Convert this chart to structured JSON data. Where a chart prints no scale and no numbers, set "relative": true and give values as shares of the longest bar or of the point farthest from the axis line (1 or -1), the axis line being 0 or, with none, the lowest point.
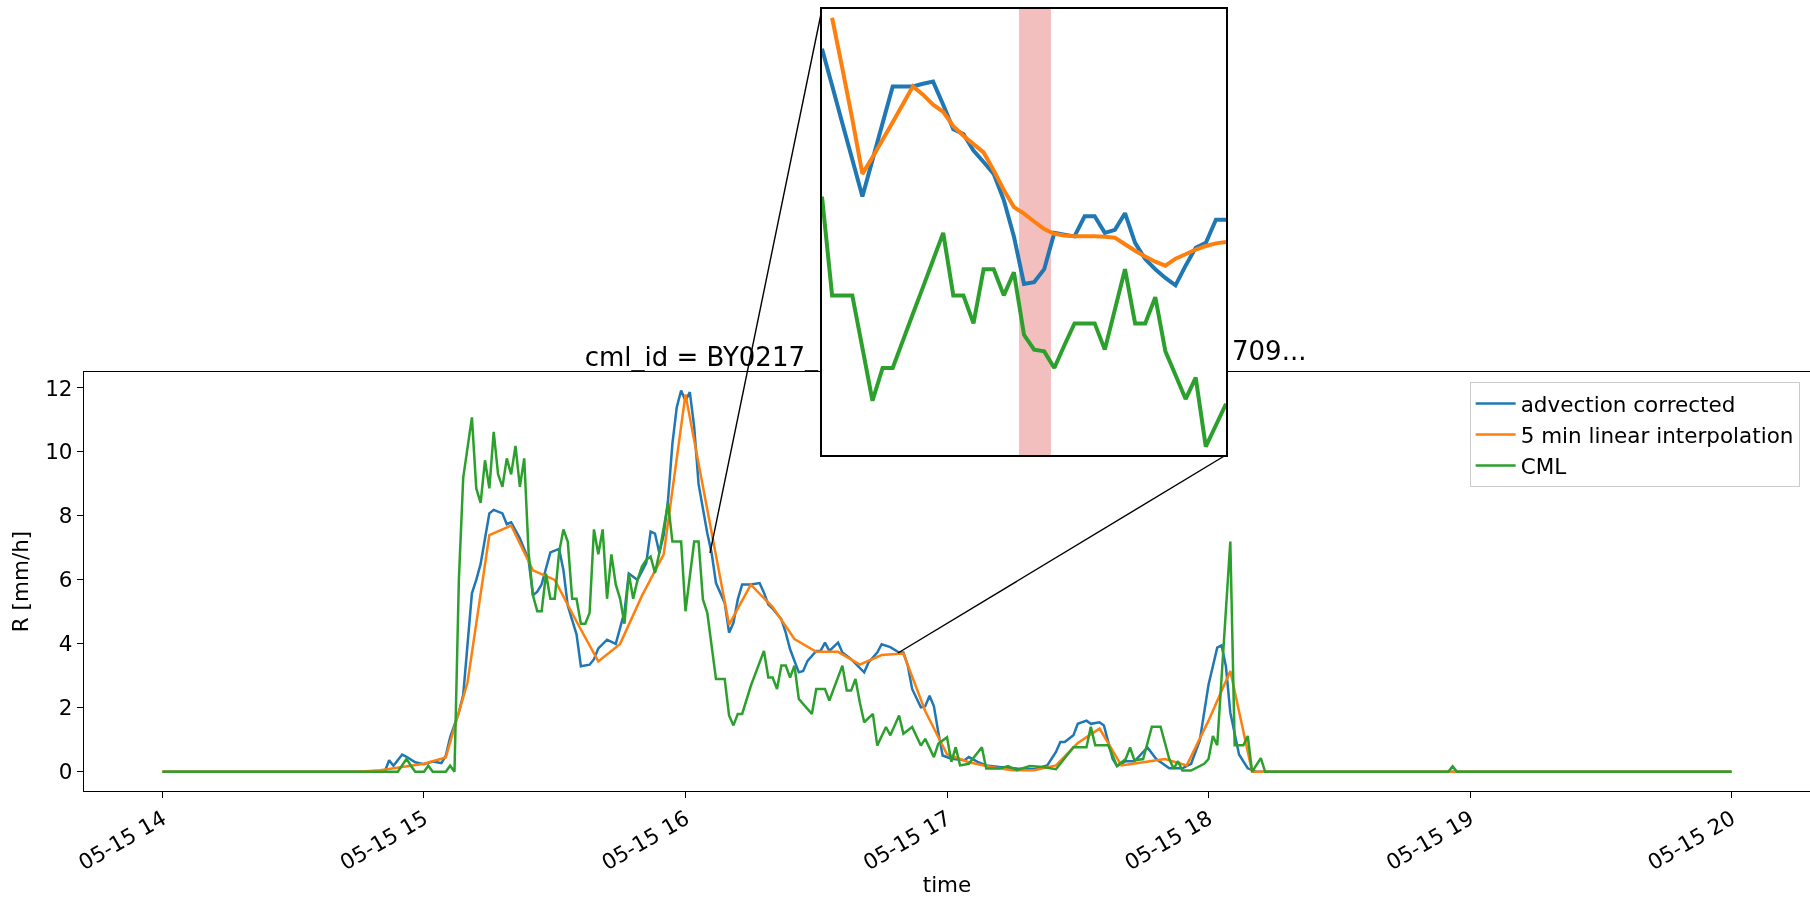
{
  "chart_data": [
    {
      "type": "line",
      "title": "cml_id = BY0217_",
      "annotations": [
        "709..."
      ],
      "xlabel": "time",
      "ylabel": "R [mm/h]",
      "xlim": [
        "--05-15T13:42",
        "--05-15T20:18"
      ],
      "xticks": [
        {
          "value": "--05-15T14:00",
          "label": "05-15 14"
        },
        {
          "value": "--05-15T15:00",
          "label": "05-15 15"
        },
        {
          "value": "--05-15T16:00",
          "label": "05-15 16"
        },
        {
          "value": "--05-15T17:00",
          "label": "05-15 17"
        },
        {
          "value": "--05-15T18:00",
          "label": "05-15 18"
        },
        {
          "value": "--05-15T19:00",
          "label": "05-15 19"
        },
        {
          "value": "--05-15T20:00",
          "label": "05-15 20"
        }
      ],
      "ylim": [
        -0.6,
        12.5
      ],
      "yticks": [
        0,
        2,
        4,
        6,
        8,
        10,
        12
      ],
      "legend": "top right",
      "series": [
        {
          "name": "advection corrected",
          "color": "#1f77b4",
          "x": [
            "--05-15T14:00",
            "--05-15T14:51",
            "--05-15T14:52",
            "--05-15T14:53",
            "--05-15T14:55",
            "--05-15T14:56",
            "--05-15T14:58",
            "--05-15T15:00",
            "--05-15T15:02",
            "--05-15T15:03",
            "--05-15T15:04",
            "--05-15T15:05",
            "--05-15T15:06",
            "--05-15T15:08",
            "--05-15T15:09",
            "--05-15T15:11",
            "--05-15T15:12",
            "--05-15T15:13",
            "--05-15T15:15",
            "--05-15T15:16",
            "--05-15T15:18",
            "--05-15T15:19",
            "--05-15T15:20",
            "--05-15T15:22",
            "--05-15T15:24",
            "--05-15T15:25",
            "--05-15T15:26",
            "--05-15T15:27",
            "--05-15T15:29",
            "--05-15T15:31",
            "--05-15T15:32",
            "--05-15T15:33",
            "--05-15T15:35",
            "--05-15T15:36",
            "--05-15T15:38",
            "--05-15T15:39",
            "--05-15T15:40",
            "--05-15T15:42",
            "--05-15T15:44",
            "--05-15T15:45",
            "--05-15T15:46",
            "--05-15T15:47",
            "--05-15T15:48",
            "--05-15T15:49",
            "--05-15T15:51",
            "--05-15T15:52",
            "--05-15T15:53",
            "--05-15T15:54",
            "--05-15T15:55",
            "--05-15T15:56",
            "--05-15T15:57",
            "--05-15T15:58",
            "--05-15T15:59",
            "--05-15T16:00",
            "--05-15T16:01",
            "--05-15T16:02",
            "--05-15T16:03",
            "--05-15T16:05",
            "--05-15T16:06",
            "--05-15T16:07",
            "--05-15T16:09",
            "--05-15T16:10",
            "--05-15T16:11",
            "--05-15T16:12",
            "--05-15T16:13",
            "--05-15T16:15",
            "--05-15T16:17",
            "--05-15T16:18",
            "--05-15T16:19",
            "--05-15T16:20",
            "--05-15T16:22",
            "--05-15T16:23",
            "--05-15T16:24",
            "--05-15T16:26",
            "--05-15T16:27",
            "--05-15T16:28",
            "--05-15T16:30",
            "--05-15T16:31",
            "--05-15T16:32",
            "--05-15T16:33",
            "--05-15T16:35",
            "--05-15T16:36",
            "--05-15T16:38",
            "--05-15T16:41",
            "--05-15T16:42",
            "--05-15T16:44",
            "--05-15T16:45",
            "--05-15T16:47",
            "--05-15T16:49",
            "--05-15T16:50",
            "--05-15T16:51",
            "--05-15T16:52",
            "--05-15T16:54",
            "--05-15T16:55",
            "--05-15T16:56",
            "--05-15T16:57",
            "--05-15T16:58",
            "--05-15T16:59",
            "--05-15T17:01",
            "--05-15T17:04",
            "--05-15T17:05",
            "--05-15T17:07",
            "--05-15T17:09",
            "--05-15T17:12",
            "--05-15T17:16",
            "--05-15T17:20",
            "--05-15T17:23",
            "--05-15T17:25",
            "--05-15T17:26",
            "--05-15T17:27",
            "--05-15T17:29",
            "--05-15T17:30",
            "--05-15T17:32",
            "--05-15T17:33",
            "--05-15T17:35",
            "--05-15T17:36",
            "--05-15T17:37",
            "--05-15T17:38",
            "--05-15T17:39",
            "--05-15T17:41",
            "--05-15T17:43",
            "--05-15T17:46",
            "--05-15T17:48",
            "--05-15T17:51",
            "--05-15T17:54",
            "--05-15T17:56",
            "--05-15T17:58",
            "--05-15T18:00",
            "--05-15T18:02",
            "--05-15T18:03",
            "--05-15T18:04",
            "--05-15T18:05",
            "--05-15T18:07",
            "--05-15T18:09",
            "--05-15T18:11",
            "--05-15T20:00"
          ],
          "values": [
            0,
            0,
            0.36,
            0.19,
            0.54,
            0.47,
            0.3,
            0.24,
            0.32,
            0.3,
            0.27,
            0.5,
            1.08,
            1.86,
            2.4,
            5.58,
            6.0,
            6.5,
            8.08,
            8.19,
            8.08,
            7.74,
            7.8,
            7.3,
            6.63,
            5.52,
            5.63,
            5.86,
            6.86,
            6.97,
            6.3,
            5.19,
            4.3,
            3.3,
            3.35,
            3.52,
            3.86,
            4.13,
            4.0,
            4.5,
            5.0,
            6.2,
            6.1,
            6.0,
            6.53,
            7.51,
            7.45,
            6.84,
            7.4,
            8.5,
            10.26,
            11.4,
            11.92,
            11.6,
            11.87,
            10.78,
            9.0,
            7.46,
            6.84,
            5.9,
            5.28,
            4.35,
            4.66,
            5.39,
            5.86,
            5.86,
            5.9,
            5.6,
            5.23,
            5.1,
            4.77,
            4.35,
            3.83,
            3.11,
            3.15,
            3.47,
            3.78,
            3.78,
            4.04,
            3.78,
            4.04,
            3.73,
            3.52,
            3.11,
            3.42,
            3.73,
            3.99,
            3.9,
            3.73,
            3.73,
            3.32,
            2.59,
            2.02,
            2.05,
            2.38,
            2.05,
            1.24,
            0.51,
            0.41,
            0.36,
            0.46,
            0.31,
            0.2,
            0.15,
            0.1,
            0.08,
            0.2,
            0.62,
            0.93,
            0.93,
            1.14,
            1.5,
            1.6,
            1.5,
            1.55,
            1.45,
            0.93,
            0.41,
            0.18,
            0.33,
            0.33,
            0.76,
            0.4,
            0.11,
            0.11,
            0.25,
            0.98,
            2.72,
            3.88,
            3.95,
            3.29,
            1.85,
            0.54,
            0.11,
            0,
            0
          ]
        },
        {
          "name": "5 min linear interpolation",
          "color": "#ff7f0e",
          "x": [
            "--05-15T14:00",
            "--05-15T14:45",
            "--05-15T14:50",
            "--05-15T14:55",
            "--05-15T15:00",
            "--05-15T15:05",
            "--05-15T15:10",
            "--05-15T15:15",
            "--05-15T15:20",
            "--05-15T15:25",
            "--05-15T15:30",
            "--05-15T15:35",
            "--05-15T15:40",
            "--05-15T15:45",
            "--05-15T15:50",
            "--05-15T15:55",
            "--05-15T16:00",
            "--05-15T16:05",
            "--05-15T16:10",
            "--05-15T16:15",
            "--05-15T16:20",
            "--05-15T16:25",
            "--05-15T16:30",
            "--05-15T16:35",
            "--05-15T16:40",
            "--05-15T16:45",
            "--05-15T16:50",
            "--05-15T16:55",
            "--05-15T17:00",
            "--05-15T17:05",
            "--05-15T17:10",
            "--05-15T17:15",
            "--05-15T17:20",
            "--05-15T17:25",
            "--05-15T17:30",
            "--05-15T17:35",
            "--05-15T17:40",
            "--05-15T17:45",
            "--05-15T17:50",
            "--05-15T17:55",
            "--05-15T18:00",
            "--05-15T18:05",
            "--05-15T18:10",
            "--05-15T20:00"
          ],
          "values": [
            0,
            0,
            0.05,
            0.15,
            0.25,
            0.45,
            2.8,
            7.4,
            7.7,
            6.3,
            6.0,
            4.7,
            3.45,
            4.0,
            5.5,
            6.8,
            11.8,
            8.2,
            4.6,
            5.85,
            5.15,
            4.15,
            3.75,
            3.75,
            3.35,
            3.65,
            3.7,
            1.9,
            0.55,
            0.3,
            0.15,
            0.05,
            0.05,
            0.2,
            0.9,
            1.35,
            0.2,
            0.3,
            0.4,
            0.2,
            1.6,
            3.15,
            0,
            0
          ]
        },
        {
          "name": "CML",
          "color": "#2ca02c",
          "x": [
            "--05-15T14:00",
            "--05-15T14:54",
            "--05-15T14:56",
            "--05-15T14:57",
            "--05-15T14:58",
            "--05-15T15:00",
            "--05-15T15:01",
            "--05-15T15:02",
            "--05-15T15:05",
            "--05-15T15:06",
            "--05-15T15:07",
            "--05-15T15:08",
            "--05-15T15:09",
            "--05-15T15:11",
            "--05-15T15:12",
            "--05-15T15:13",
            "--05-15T15:14",
            "--05-15T15:15",
            "--05-15T15:16",
            "--05-15T15:17",
            "--05-15T15:18",
            "--05-15T15:19",
            "--05-15T15:20",
            "--05-15T15:21",
            "--05-15T15:22",
            "--05-15T15:23",
            "--05-15T15:24",
            "--05-15T15:25",
            "--05-15T15:26",
            "--05-15T15:27",
            "--05-15T15:28",
            "--05-15T15:29",
            "--05-15T15:30",
            "--05-15T15:31",
            "--05-15T15:32",
            "--05-15T15:33",
            "--05-15T15:34",
            "--05-15T15:35",
            "--05-15T15:36",
            "--05-15T15:37",
            "--05-15T15:38",
            "--05-15T15:39",
            "--05-15T15:40",
            "--05-15T15:41",
            "--05-15T15:42",
            "--05-15T15:43",
            "--05-15T15:44",
            "--05-15T15:45",
            "--05-15T15:46",
            "--05-15T15:47",
            "--05-15T15:48",
            "--05-15T15:49",
            "--05-15T15:50",
            "--05-15T15:51",
            "--05-15T15:52",
            "--05-15T15:53",
            "--05-15T15:54",
            "--05-15T15:56",
            "--05-15T15:57",
            "--05-15T15:59",
            "--05-15T16:00",
            "--05-15T16:02",
            "--05-15T16:03",
            "--05-15T16:04",
            "--05-15T16:05",
            "--05-15T16:07",
            "--05-15T16:09",
            "--05-15T16:10",
            "--05-15T16:11",
            "--05-15T16:12",
            "--05-15T16:13",
            "--05-15T16:15",
            "--05-15T16:18",
            "--05-15T16:19",
            "--05-15T16:20",
            "--05-15T16:21",
            "--05-15T16:22",
            "--05-15T16:23",
            "--05-15T16:24",
            "--05-15T16:25",
            "--05-15T16:26",
            "--05-15T16:27",
            "--05-15T16:29",
            "--05-15T16:30",
            "--05-15T16:32",
            "--05-15T16:33",
            "--05-15T16:36",
            "--05-15T16:37",
            "--05-15T16:38",
            "--05-15T16:39",
            "--05-15T16:40",
            "--05-15T16:41",
            "--05-15T16:43",
            "--05-15T16:44",
            "--05-15T16:46",
            "--05-15T16:47",
            "--05-15T16:49",
            "--05-15T16:50",
            "--05-15T16:52",
            "--05-15T16:54",
            "--05-15T16:55",
            "--05-15T16:57",
            "--05-15T16:58",
            "--05-15T17:00",
            "--05-15T17:01",
            "--05-15T17:02",
            "--05-15T17:03",
            "--05-15T17:05",
            "--05-15T17:08",
            "--05-15T17:09",
            "--05-15T17:12",
            "--05-15T17:14",
            "--05-15T17:16",
            "--05-15T17:19",
            "--05-15T17:22",
            "--05-15T17:25",
            "--05-15T17:29",
            "--05-15T17:30",
            "--05-15T17:32",
            "--05-15T17:33",
            "--05-15T17:34",
            "--05-15T17:37",
            "--05-15T17:39",
            "--05-15T17:41",
            "--05-15T17:42",
            "--05-15T17:43",
            "--05-15T17:45",
            "--05-15T17:47",
            "--05-15T17:49",
            "--05-15T17:51",
            "--05-15T17:52",
            "--05-15T17:53",
            "--05-15T17:54",
            "--05-15T17:56",
            "--05-15T17:59",
            "--05-15T18:00",
            "--05-15T18:01",
            "--05-15T18:02",
            "--05-15T18:05",
            "--05-15T18:06",
            "--05-15T18:08",
            "--05-15T18:09",
            "--05-15T18:10",
            "--05-15T18:12",
            "--05-15T18:13",
            "--05-15T18:55",
            "--05-15T18:56",
            "--05-15T18:57",
            "--05-15T20:00"
          ],
          "values": [
            0,
            0,
            0.41,
            0.19,
            0,
            0,
            0.19,
            0,
            0,
            0.19,
            0,
            5.97,
            9.19,
            11.08,
            8.86,
            8.41,
            9.74,
            8.86,
            10.63,
            9.3,
            8.91,
            9.8,
            9.3,
            10.19,
            8.91,
            9.8,
            6.86,
            5.52,
            5.02,
            5.02,
            6.19,
            5.41,
            5.41,
            6.86,
            7.58,
            7.19,
            5.41,
            5.41,
            4.63,
            4.63,
            4.97,
            7.58,
            6.8,
            7.58,
            5.41,
            6.8,
            5.86,
            5.41,
            4.63,
            6.19,
            5.41,
            6.0,
            6.42,
            6.63,
            6.73,
            6.22,
            6.84,
            8.4,
            7.2,
            7.2,
            5.02,
            7.2,
            7.2,
            5.39,
            4.97,
            2.9,
            2.9,
            1.76,
            1.45,
            1.81,
            1.81,
            2.69,
            3.78,
            2.95,
            2.95,
            2.59,
            3.32,
            3.32,
            2.95,
            3.32,
            2.28,
            2.12,
            1.81,
            2.59,
            2.59,
            2.23,
            3.32,
            2.54,
            2.54,
            2.9,
            2.17,
            1.55,
            1.81,
            0.82,
            1.4,
            1.14,
            1.76,
            1.19,
            1.4,
            0.82,
            1.03,
            0.46,
            0.88,
            1.08,
            0.31,
            0.77,
            0.2,
            0.25,
            0.77,
            0.1,
            0.1,
            0.18,
            0.05,
            0.18,
            0.15,
            0.08,
            0.77,
            0.77,
            0.77,
            1.41,
            0.83,
            0.83,
            0.18,
            0.4,
            0.76,
            0.36,
            0.4,
            1.41,
            1.41,
            0.4,
            0.1,
            0.33,
            0.04,
            0.04,
            0.25,
            0.4,
            1.12,
            0.83,
            7.2,
            0.83,
            0.83,
            1.12,
            0,
            0.43,
            0,
            0,
            0.17,
            0,
            0
          ]
        }
      ]
    },
    {
      "type": "line",
      "relative": true,
      "categories": [
        null,
        null,
        null,
        null,
        null,
        null,
        null,
        null,
        null,
        null,
        null,
        null,
        null,
        null,
        null,
        null,
        null,
        null,
        null,
        null,
        null,
        null,
        null,
        null,
        null,
        null,
        null,
        null,
        null,
        null,
        null,
        null,
        null,
        null,
        null,
        null,
        null,
        null,
        null,
        null,
        null
      ],
      "series": [
        {
          "color": "#1f77b4",
          "values": [
            0.929,
            0.845,
            0.76,
            0.676,
            0.591,
            0.675,
            0.759,
            0.843,
            0.843,
            0.843,
            0.849,
            0.854,
            0.801,
            0.745,
            0.734,
            0.696,
            0.67,
            0.643,
            0.583,
            0.5,
            0.391,
            0.395,
            0.425,
            0.508,
            0.504,
            0.5,
            0.546,
            0.546,
            0.508,
            0.515,
            0.553,
            0.485,
            0.448,
            0.425,
            0.405,
            0.388,
            0.433,
            0.474,
            0.485,
            0.538,
            0.538
          ]
        },
        {
          "color": "#ff7f0e",
          "values": [
            null,
            1.0,
            0.886,
            0.768,
            0.643,
            0.681,
            0.721,
            0.761,
            0.802,
            0.843,
            0.824,
            0.801,
            0.785,
            0.752,
            0.73,
            0.711,
            0.692,
            0.651,
            0.606,
            0.567,
            0.552,
            0.534,
            0.517,
            0.506,
            0.502,
            0.5,
            0.5,
            0.5,
            0.499,
            0.497,
            0.482,
            0.467,
            0.454,
            0.442,
            0.433,
            0.449,
            0.459,
            0.47,
            0.478,
            0.484,
            0.487
          ]
        },
        {
          "color": "#2ca02c",
          "values": [
            0.591,
            0.365,
            0.365,
            0.365,
            0.245,
            0.124,
            0.199,
            0.199,
            0.261,
            0.323,
            0.384,
            0.446,
            0.508,
            0.365,
            0.365,
            0.301,
            0.425,
            0.425,
            0.365,
            0.418,
            0.275,
            0.241,
            0.237,
            0.199,
            0.251,
            0.301,
            0.301,
            0.301,
            0.241,
            0.333,
            0.425,
            0.301,
            0.301,
            0.361,
            0.237,
            0.183,
            0.128,
            0.177,
            0.019,
            0.068,
            0.117
          ]
        }
      ]
    }
  ]
}
